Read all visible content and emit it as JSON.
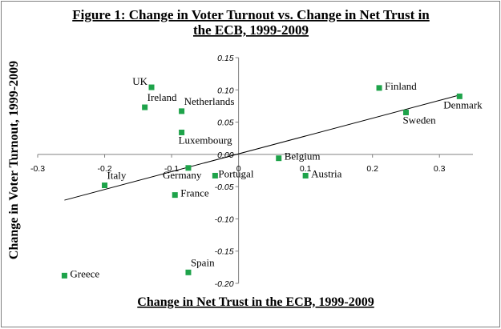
{
  "chart_data": {
    "type": "scatter",
    "title_line1": "Figure 1: Change in Voter Turnout vs. Change in Net Trust in",
    "title_line2": "the ECB, 1999-2009",
    "xlabel": "Change in Net Trust in the ECB, 1999-2009",
    "ylabel": "Change in Voter Turnout, 1999-2009",
    "xlim": [
      -0.3,
      0.35
    ],
    "ylim": [
      -0.2,
      0.15
    ],
    "x_ticks": [
      -0.3,
      -0.2,
      -0.1,
      0,
      0.1,
      0.2,
      0.3
    ],
    "x_tick_labels": [
      "-0.3",
      "-0.2",
      "-0.1",
      "0",
      "0.1",
      "0.2",
      "0.3"
    ],
    "y_ticks": [
      0.15,
      0.1,
      0.05,
      0,
      -0.05,
      -0.1,
      -0.15,
      -0.2
    ],
    "y_tick_labels": [
      "0.15",
      "0.10",
      "0.05",
      "0.00",
      "-0.05",
      "-0.10",
      "-0.15",
      "-0.20"
    ],
    "grid": false,
    "marker_color": "#1ea34a",
    "trendline": {
      "type": "linear",
      "from": [
        -0.26,
        -0.071
      ],
      "to": [
        0.33,
        0.092
      ]
    },
    "points": [
      {
        "label": "UK",
        "x": -0.13,
        "y": 0.104,
        "label_pos": "left"
      },
      {
        "label": "Ireland",
        "x": -0.14,
        "y": 0.073,
        "label_pos": "above-right"
      },
      {
        "label": "Netherlands",
        "x": -0.085,
        "y": 0.067,
        "label_pos": "above-right"
      },
      {
        "label": "Luxembourg",
        "x": -0.085,
        "y": 0.034,
        "label_pos": "below-right"
      },
      {
        "label": "Finland",
        "x": 0.21,
        "y": 0.103,
        "label_pos": "right"
      },
      {
        "label": "Denmark",
        "x": 0.33,
        "y": 0.09,
        "label_pos": "below-left"
      },
      {
        "label": "Sweden",
        "x": 0.25,
        "y": 0.065,
        "label_pos": "below-right"
      },
      {
        "label": "Belgium",
        "x": 0.06,
        "y": -0.006,
        "label_pos": "right"
      },
      {
        "label": "Austria",
        "x": 0.1,
        "y": -0.033,
        "label_pos": "right"
      },
      {
        "label": "Germany",
        "x": -0.075,
        "y": -0.021,
        "label_pos": "below"
      },
      {
        "label": "Portugal",
        "x": -0.035,
        "y": -0.033,
        "label_pos": "right-tight"
      },
      {
        "label": "Italy",
        "x": -0.2,
        "y": -0.048,
        "label_pos": "above-right"
      },
      {
        "label": "France",
        "x": -0.095,
        "y": -0.063,
        "label_pos": "right"
      },
      {
        "label": "Greece",
        "x": -0.26,
        "y": -0.188,
        "label_pos": "right"
      },
      {
        "label": "Spain",
        "x": -0.075,
        "y": -0.183,
        "label_pos": "above-right"
      }
    ]
  }
}
